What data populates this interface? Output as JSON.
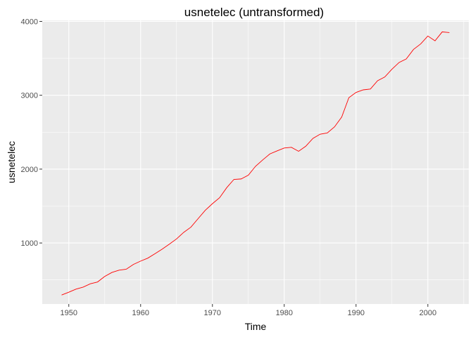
{
  "chart_data": {
    "type": "line",
    "title": "usnetelec (untransformed)",
    "xlabel": "Time",
    "ylabel": "usnetelec",
    "xlim": [
      1946.3,
      2005.7
    ],
    "ylim": [
      174,
      4014
    ],
    "x_ticks": [
      1950,
      1960,
      1970,
      1980,
      1990,
      2000
    ],
    "x_tick_labels": [
      "1950",
      "1960",
      "1970",
      "1980",
      "1990",
      "2000"
    ],
    "y_ticks": [
      1000,
      2000,
      3000,
      4000
    ],
    "y_tick_labels": [
      "1000",
      "2000",
      "3000",
      "4000"
    ],
    "grid": true,
    "legend": "none",
    "colors": {
      "line": "#ff0000",
      "panel": "#ebebeb",
      "grid": "#ffffff"
    },
    "series": [
      {
        "x": [
          1949,
          1950,
          1951,
          1952,
          1953,
          1954,
          1955,
          1956,
          1957,
          1958,
          1959,
          1960,
          1961,
          1962,
          1963,
          1964,
          1965,
          1966,
          1967,
          1968,
          1969,
          1970,
          1971,
          1972,
          1973,
          1974,
          1975,
          1976,
          1977,
          1978,
          1979,
          1980,
          1981,
          1982,
          1983,
          1984,
          1985,
          1986,
          1987,
          1988,
          1989,
          1990,
          1991,
          1992,
          1993,
          1994,
          1995,
          1996,
          1997,
          1998,
          1999,
          2000,
          2001,
          2002,
          2003
        ],
        "values": [
          296,
          334,
          375,
          403,
          448,
          472,
          547,
          601,
          632,
          645,
          710,
          755,
          795,
          855,
          917,
          984,
          1055,
          1144,
          1214,
          1329,
          1442,
          1532,
          1613,
          1750,
          1861,
          1867,
          1918,
          2038,
          2124,
          2206,
          2247,
          2286,
          2295,
          2241,
          2310,
          2416,
          2473,
          2490,
          2572,
          2704,
          2967,
          3038,
          3073,
          3084,
          3197,
          3247,
          3353,
          3444,
          3492,
          3620,
          3695,
          3802,
          3737,
          3858,
          3848
        ]
      }
    ]
  }
}
